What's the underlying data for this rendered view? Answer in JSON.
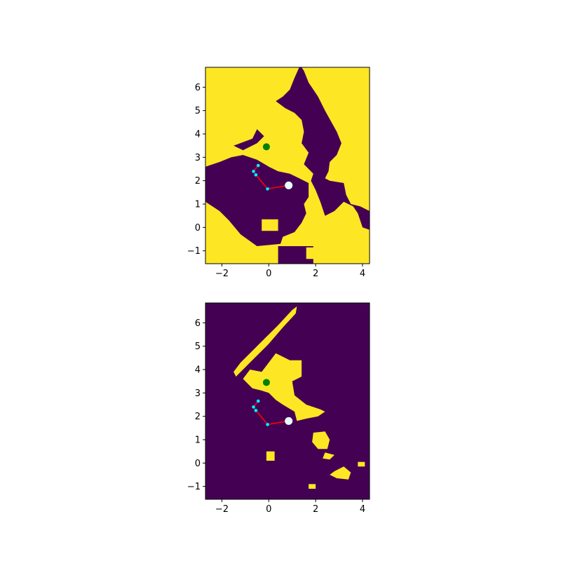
{
  "colors": {
    "free": "#fde725",
    "occupied": "#440154",
    "goal": "#008000",
    "path": "#ff0000",
    "waypoint": "#00ffff",
    "robot": "#e0ffff"
  },
  "chart_data": [
    {
      "type": "heatmap",
      "title": "",
      "xlabel": "",
      "ylabel": "",
      "xlim": [
        -2.7,
        4.3
      ],
      "ylim": [
        -1.55,
        6.85
      ],
      "xticks": [
        -2,
        0,
        2,
        4
      ],
      "yticks": [
        -1,
        0,
        1,
        2,
        3,
        4,
        5,
        6
      ],
      "xtick_labels": [
        "−2",
        "0",
        "2",
        "4"
      ],
      "ytick_labels": [
        "−1",
        "0",
        "1",
        "2",
        "3",
        "4",
        "5",
        "6"
      ],
      "background": "free",
      "regions": [
        {
          "fill": "occupied",
          "points": [
            [
              1.4,
              6.85
            ],
            [
              1.5,
              6.7
            ],
            [
              1.7,
              6.2
            ],
            [
              2.1,
              5.6
            ],
            [
              2.4,
              5.0
            ],
            [
              2.9,
              4.1
            ],
            [
              3.1,
              3.6
            ],
            [
              2.9,
              3.1
            ],
            [
              2.6,
              2.8
            ],
            [
              2.55,
              2.4
            ],
            [
              2.4,
              2.1
            ],
            [
              2.6,
              2.0
            ],
            [
              3.2,
              1.9
            ],
            [
              3.3,
              1.4
            ],
            [
              3.5,
              1.0
            ],
            [
              3.9,
              0.9
            ],
            [
              4.3,
              0.7
            ],
            [
              4.3,
              -0.1
            ],
            [
              4.0,
              0.0
            ],
            [
              3.8,
              0.6
            ],
            [
              3.6,
              0.9
            ],
            [
              3.2,
              1.1
            ],
            [
              2.8,
              0.7
            ],
            [
              2.4,
              0.5
            ],
            [
              2.2,
              1.1
            ],
            [
              2.0,
              1.6
            ],
            [
              1.8,
              2.0
            ],
            [
              1.9,
              2.3
            ],
            [
              1.5,
              2.7
            ],
            [
              1.7,
              3.2
            ],
            [
              1.4,
              3.6
            ],
            [
              1.5,
              4.1
            ],
            [
              1.4,
              4.6
            ],
            [
              1.1,
              4.9
            ],
            [
              0.7,
              5.1
            ],
            [
              0.3,
              5.4
            ],
            [
              0.6,
              5.6
            ],
            [
              0.9,
              5.9
            ],
            [
              1.1,
              6.4
            ],
            [
              1.3,
              6.85
            ]
          ]
        },
        {
          "fill": "occupied",
          "points": [
            [
              -2.7,
              2.6
            ],
            [
              -2.1,
              2.8
            ],
            [
              -1.6,
              3.0
            ],
            [
              -1.1,
              3.1
            ],
            [
              -0.5,
              2.9
            ],
            [
              0.0,
              2.6
            ],
            [
              0.4,
              2.4
            ],
            [
              0.9,
              2.3
            ],
            [
              1.3,
              2.1
            ],
            [
              1.7,
              1.9
            ],
            [
              1.7,
              1.3
            ],
            [
              1.5,
              1.0
            ],
            [
              1.6,
              0.6
            ],
            [
              1.4,
              0.2
            ],
            [
              1.1,
              -0.2
            ],
            [
              0.6,
              -0.4
            ],
            [
              0.5,
              -0.7
            ],
            [
              -0.5,
              -0.8
            ],
            [
              -1.2,
              -0.3
            ],
            [
              -1.7,
              0.3
            ],
            [
              -2.1,
              0.7
            ],
            [
              -2.7,
              1.1
            ]
          ]
        },
        {
          "fill": "occupied",
          "points": [
            [
              0.4,
              -0.8
            ],
            [
              1.9,
              -0.8
            ],
            [
              1.9,
              -1.55
            ],
            [
              0.4,
              -1.55
            ]
          ]
        },
        {
          "fill": "occupied",
          "points": [
            [
              -1.5,
              3.5
            ],
            [
              -0.7,
              3.8
            ],
            [
              -0.5,
              4.2
            ],
            [
              -0.2,
              3.9
            ],
            [
              -0.5,
              3.6
            ],
            [
              -1.1,
              3.3
            ]
          ]
        },
        {
          "fill": "free",
          "points": [
            [
              -0.3,
              0.35
            ],
            [
              0.4,
              0.35
            ],
            [
              0.4,
              -0.15
            ],
            [
              -0.3,
              -0.15
            ]
          ]
        },
        {
          "fill": "free",
          "points": [
            [
              1.6,
              -0.85
            ],
            [
              2.1,
              -0.85
            ],
            [
              2.1,
              -1.35
            ],
            [
              1.6,
              -1.35
            ]
          ]
        },
        {
          "fill": "free",
          "points": [
            [
              2.7,
              0.2
            ],
            [
              3.5,
              0.2
            ],
            [
              3.6,
              -0.3
            ],
            [
              3.1,
              -0.6
            ],
            [
              2.7,
              -0.4
            ]
          ]
        }
      ],
      "path": {
        "x": [
          0.85,
          -0.05,
          -0.55,
          -0.65,
          -0.45
        ],
        "y": [
          1.8,
          1.65,
          2.25,
          2.4,
          2.65
        ]
      },
      "goal": {
        "x": -0.1,
        "y": 3.45
      },
      "robot": {
        "x": 0.85,
        "y": 1.8
      }
    },
    {
      "type": "heatmap",
      "title": "",
      "xlabel": "",
      "ylabel": "",
      "xlim": [
        -2.7,
        4.3
      ],
      "ylim": [
        -1.55,
        6.85
      ],
      "xticks": [
        -2,
        0,
        2,
        4
      ],
      "yticks": [
        -1,
        0,
        1,
        2,
        3,
        4,
        5,
        6
      ],
      "xtick_labels": [
        "−2",
        "0",
        "2",
        "4"
      ],
      "ytick_labels": [
        "−1",
        "0",
        "1",
        "2",
        "3",
        "4",
        "5",
        "6"
      ],
      "background": "occupied",
      "regions": [
        {
          "fill": "free",
          "points": [
            [
              -1.5,
              3.9
            ],
            [
              -1.2,
              4.3
            ],
            [
              -0.7,
              4.8
            ],
            [
              -0.1,
              5.4
            ],
            [
              0.4,
              5.9
            ],
            [
              1.0,
              6.55
            ],
            [
              1.2,
              6.7
            ],
            [
              1.15,
              6.4
            ],
            [
              0.6,
              5.8
            ],
            [
              0.0,
              5.1
            ],
            [
              -0.6,
              4.5
            ],
            [
              -1.1,
              4.0
            ],
            [
              -1.4,
              3.7
            ]
          ]
        },
        {
          "fill": "free",
          "points": [
            [
              -1.1,
              3.6
            ],
            [
              -0.8,
              4.0
            ],
            [
              -0.3,
              3.9
            ],
            [
              0.0,
              4.3
            ],
            [
              0.3,
              4.7
            ],
            [
              0.9,
              4.4
            ],
            [
              1.4,
              4.4
            ],
            [
              1.4,
              3.7
            ],
            [
              1.0,
              3.5
            ],
            [
              1.1,
              2.9
            ],
            [
              1.6,
              2.5
            ],
            [
              2.2,
              2.3
            ],
            [
              2.4,
              2.2
            ],
            [
              2.1,
              2.0
            ],
            [
              1.6,
              1.9
            ],
            [
              1.2,
              1.8
            ],
            [
              1.1,
              2.2
            ],
            [
              0.6,
              2.5
            ],
            [
              0.3,
              2.7
            ],
            [
              0.0,
              3.0
            ],
            [
              -0.3,
              3.1
            ],
            [
              -0.7,
              3.2
            ]
          ]
        },
        {
          "fill": "free",
          "points": [
            [
              1.9,
              1.3
            ],
            [
              2.4,
              1.35
            ],
            [
              2.6,
              1.0
            ],
            [
              2.5,
              0.6
            ],
            [
              2.1,
              0.6
            ],
            [
              1.85,
              0.9
            ]
          ]
        },
        {
          "fill": "free",
          "points": [
            [
              2.4,
              0.45
            ],
            [
              2.8,
              0.35
            ],
            [
              2.6,
              0.15
            ],
            [
              2.3,
              0.2
            ]
          ]
        },
        {
          "fill": "free",
          "points": [
            [
              2.8,
              -0.35
            ],
            [
              3.2,
              -0.15
            ],
            [
              3.5,
              -0.4
            ],
            [
              3.4,
              -0.7
            ],
            [
              2.9,
              -0.65
            ],
            [
              2.6,
              -0.5
            ]
          ]
        },
        {
          "fill": "free",
          "points": [
            [
              -0.1,
              0.5
            ],
            [
              0.25,
              0.5
            ],
            [
              0.25,
              0.1
            ],
            [
              -0.1,
              0.1
            ]
          ]
        },
        {
          "fill": "free",
          "points": [
            [
              1.7,
              -0.9
            ],
            [
              2.0,
              -0.9
            ],
            [
              2.0,
              -1.1
            ],
            [
              1.7,
              -1.1
            ]
          ]
        },
        {
          "fill": "free",
          "points": [
            [
              3.8,
              0.05
            ],
            [
              4.1,
              0.05
            ],
            [
              4.1,
              -0.15
            ],
            [
              3.8,
              -0.15
            ]
          ]
        }
      ],
      "path": {
        "x": [
          0.85,
          -0.05,
          -0.55,
          -0.65,
          -0.45
        ],
        "y": [
          1.8,
          1.65,
          2.25,
          2.4,
          2.65
        ]
      },
      "goal": {
        "x": -0.1,
        "y": 3.45
      },
      "robot": {
        "x": 0.85,
        "y": 1.8
      }
    }
  ]
}
